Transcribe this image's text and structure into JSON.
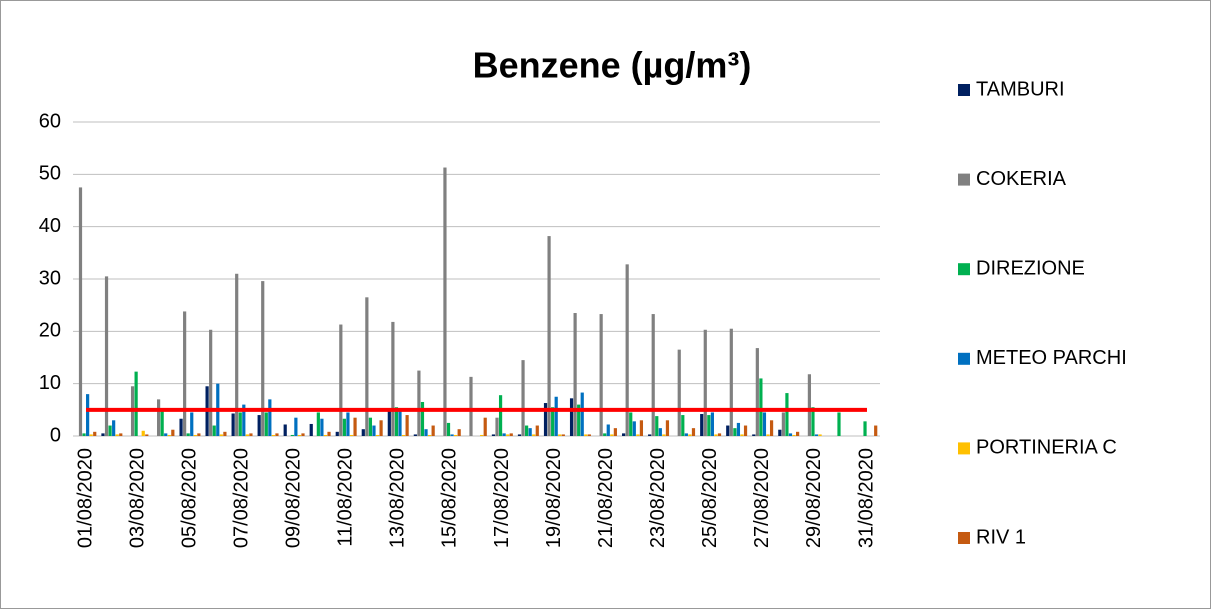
{
  "chart_data": {
    "type": "bar",
    "title": "Benzene (µg/m³)",
    "categories": [
      "01/08/2020",
      null,
      "03/08/2020",
      null,
      "05/08/2020",
      null,
      "07/08/2020",
      null,
      "09/08/2020",
      null,
      "11/08/2020",
      null,
      "13/08/2020",
      null,
      "15/08/2020",
      null,
      "17/08/2020",
      null,
      "19/08/2020",
      null,
      "21/08/2020",
      null,
      "23/08/2020",
      null,
      "25/08/2020",
      null,
      "27/08/2020",
      null,
      "29/08/2020",
      null,
      "31/08/2020"
    ],
    "series": [
      {
        "name": "TAMBURI",
        "color": "#002060",
        "values": [
          0,
          0.5,
          0,
          0,
          3.3,
          9.5,
          4.3,
          4,
          2.2,
          2.3,
          0.8,
          1.3,
          5,
          0.3,
          0,
          0,
          0.3,
          0.3,
          6.3,
          7.2,
          0,
          0.5,
          0.3,
          0,
          4.2,
          2,
          0.3,
          1.2,
          0,
          0,
          0
        ]
      },
      {
        "name": "COKERIA",
        "color": "#808080",
        "values": [
          47.5,
          30.5,
          9.5,
          7,
          23.8,
          20.3,
          31,
          29.6,
          0,
          0,
          21.3,
          26.5,
          21.8,
          12.5,
          51.3,
          11.3,
          3.5,
          14.5,
          38.2,
          23.5,
          23.3,
          32.8,
          23.3,
          16.5,
          20.3,
          20.5,
          16.8,
          4.5,
          11.8,
          0,
          0
        ]
      },
      {
        "name": "DIREZIONE",
        "color": "#00b050",
        "values": [
          0.5,
          2,
          12.3,
          5,
          0.5,
          2,
          4.5,
          4.5,
          0.2,
          4.5,
          3.3,
          3.5,
          5.5,
          6.5,
          2.5,
          0,
          7.8,
          2,
          5.5,
          6,
          0.5,
          4.5,
          3.8,
          4,
          4,
          1.5,
          11,
          8.2,
          5.5,
          4.5,
          2.8
        ]
      },
      {
        "name": "METEO PARCHI",
        "color": "#0070c0",
        "values": [
          8,
          3,
          0,
          0.5,
          4.5,
          10,
          6,
          7,
          3.5,
          3.3,
          4.5,
          2,
          5.3,
          1.3,
          0.3,
          0,
          0.5,
          1.5,
          7.5,
          8.3,
          2.2,
          2.8,
          1.5,
          0.5,
          4.5,
          2.5,
          4.5,
          0.5,
          0.3,
          0,
          0
        ]
      },
      {
        "name": "PORTINERIA C",
        "color": "#ffc000",
        "values": [
          0.3,
          0.3,
          1,
          0.2,
          0.2,
          0.3,
          0.3,
          0.2,
          0.2,
          0.2,
          0.2,
          0.2,
          0.2,
          0.2,
          0.2,
          0.2,
          0.3,
          0.3,
          0.3,
          0.3,
          0.3,
          0.3,
          0.3,
          0.3,
          0.3,
          0.3,
          0.3,
          0.2,
          0.3,
          0,
          0
        ]
      },
      {
        "name": "RIV 1",
        "color": "#c55a11",
        "values": [
          0.8,
          0.5,
          0.3,
          1.2,
          0.5,
          0.8,
          0.5,
          0.5,
          0.5,
          0.8,
          3.5,
          3,
          4,
          2,
          1.3,
          3.5,
          0.5,
          2,
          0.3,
          0.3,
          1.5,
          3,
          3,
          1.5,
          0.5,
          2,
          3,
          0.8,
          0,
          0,
          2
        ]
      }
    ],
    "hline": {
      "value": 5,
      "color": "#ff0000"
    },
    "ylim": [
      0,
      60
    ],
    "yticks": [
      0,
      10,
      20,
      30,
      40,
      50,
      60
    ],
    "grid": true,
    "legend": "right"
  }
}
